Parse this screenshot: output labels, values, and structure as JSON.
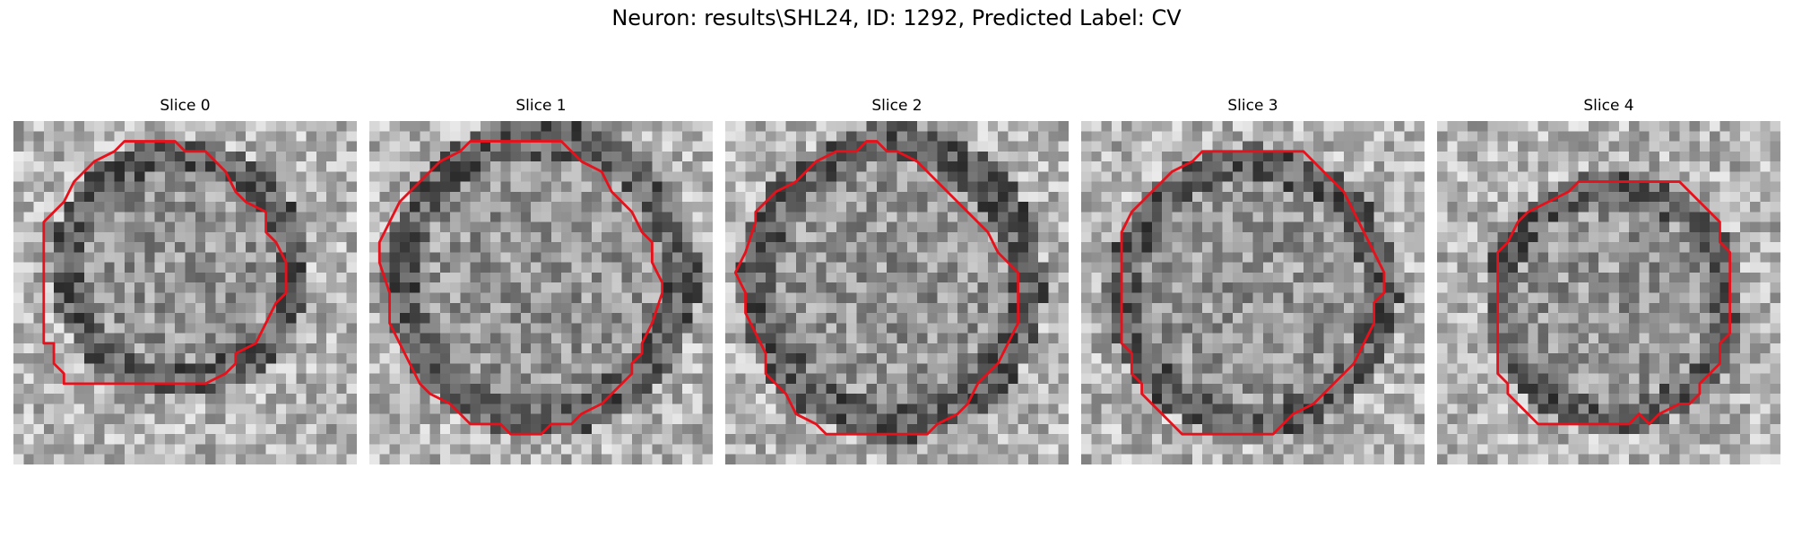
{
  "figure": {
    "title": "Neuron: results\\SHL24, ID: 1292, Predicted Label: CV"
  },
  "panels": [
    {
      "title": "Slice 0",
      "seed": 11,
      "contour_color": "#e8101a"
    },
    {
      "title": "Slice 1",
      "seed": 23,
      "contour_color": "#e8101a"
    },
    {
      "title": "Slice 2",
      "seed": 37,
      "contour_color": "#e8101a"
    },
    {
      "title": "Slice 3",
      "seed": 51,
      "contour_color": "#e8101a"
    },
    {
      "title": "Slice 4",
      "seed": 67,
      "contour_color": "#e8101a"
    }
  ],
  "colors": {
    "background": "#ffffff",
    "contour": "#e8101a",
    "text": "#000000"
  }
}
